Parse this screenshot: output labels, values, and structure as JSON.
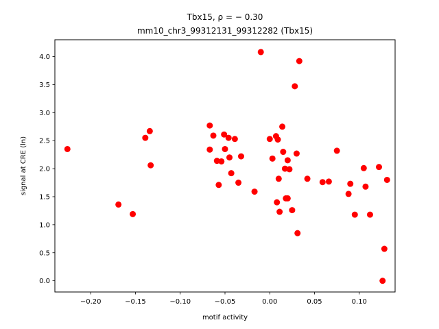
{
  "chart_data": {
    "type": "scatter",
    "title_line1": "Tbx15, ρ = − 0.30",
    "title_line2": "mm10_chr3_99312131_99312282 (Tbx15)",
    "xlabel": "motif activity",
    "ylabel": "signal at CRE (ln)",
    "xlim": [
      -0.24,
      0.14
    ],
    "ylim": [
      -0.2,
      4.3
    ],
    "xticks": [
      -0.2,
      -0.15,
      -0.1,
      -0.05,
      0.0,
      0.05,
      0.1
    ],
    "xtick_labels": [
      "−0.20",
      "−0.15",
      "−0.10",
      "−0.05",
      "0.00",
      "0.05",
      "0.10"
    ],
    "yticks": [
      0.0,
      0.5,
      1.0,
      1.5,
      2.0,
      2.5,
      3.0,
      3.5,
      4.0
    ],
    "ytick_labels": [
      "0.0",
      "0.5",
      "1.0",
      "1.5",
      "2.0",
      "2.5",
      "3.0",
      "3.5",
      "4.0"
    ],
    "marker_color": "#ff0000",
    "grid": false,
    "points": [
      {
        "x": -0.226,
        "y": 2.35
      },
      {
        "x": -0.169,
        "y": 1.36
      },
      {
        "x": -0.153,
        "y": 1.19
      },
      {
        "x": -0.139,
        "y": 2.55
      },
      {
        "x": -0.134,
        "y": 2.67
      },
      {
        "x": -0.133,
        "y": 2.06
      },
      {
        "x": -0.067,
        "y": 2.77
      },
      {
        "x": -0.067,
        "y": 2.34
      },
      {
        "x": -0.063,
        "y": 2.59
      },
      {
        "x": -0.059,
        "y": 2.14
      },
      {
        "x": -0.057,
        "y": 1.71
      },
      {
        "x": -0.054,
        "y": 2.13
      },
      {
        "x": -0.051,
        "y": 2.61
      },
      {
        "x": -0.05,
        "y": 2.35
      },
      {
        "x": -0.046,
        "y": 2.55
      },
      {
        "x": -0.045,
        "y": 2.2
      },
      {
        "x": -0.043,
        "y": 1.92
      },
      {
        "x": -0.039,
        "y": 2.53
      },
      {
        "x": -0.035,
        "y": 1.75
      },
      {
        "x": -0.032,
        "y": 2.22
      },
      {
        "x": -0.017,
        "y": 1.59
      },
      {
        "x": -0.01,
        "y": 4.08
      },
      {
        "x": 0.0,
        "y": 2.53
      },
      {
        "x": 0.003,
        "y": 2.18
      },
      {
        "x": 0.007,
        "y": 2.58
      },
      {
        "x": 0.009,
        "y": 2.52
      },
      {
        "x": 0.008,
        "y": 1.4
      },
      {
        "x": 0.01,
        "y": 1.82
      },
      {
        "x": 0.011,
        "y": 1.23
      },
      {
        "x": 0.014,
        "y": 2.75
      },
      {
        "x": 0.015,
        "y": 2.3
      },
      {
        "x": 0.017,
        "y": 2.0
      },
      {
        "x": 0.018,
        "y": 1.47
      },
      {
        "x": 0.02,
        "y": 1.47
      },
      {
        "x": 0.02,
        "y": 2.15
      },
      {
        "x": 0.022,
        "y": 1.99
      },
      {
        "x": 0.025,
        "y": 1.26
      },
      {
        "x": 0.028,
        "y": 3.47
      },
      {
        "x": 0.03,
        "y": 2.27
      },
      {
        "x": 0.031,
        "y": 0.85
      },
      {
        "x": 0.033,
        "y": 3.92
      },
      {
        "x": 0.042,
        "y": 1.82
      },
      {
        "x": 0.059,
        "y": 1.76
      },
      {
        "x": 0.066,
        "y": 1.77
      },
      {
        "x": 0.075,
        "y": 2.32
      },
      {
        "x": 0.088,
        "y": 1.55
      },
      {
        "x": 0.09,
        "y": 1.73
      },
      {
        "x": 0.095,
        "y": 1.18
      },
      {
        "x": 0.105,
        "y": 2.01
      },
      {
        "x": 0.107,
        "y": 1.68
      },
      {
        "x": 0.112,
        "y": 1.18
      },
      {
        "x": 0.122,
        "y": 2.03
      },
      {
        "x": 0.126,
        "y": 0.0
      },
      {
        "x": 0.128,
        "y": 0.57
      },
      {
        "x": 0.131,
        "y": 1.8
      }
    ]
  }
}
